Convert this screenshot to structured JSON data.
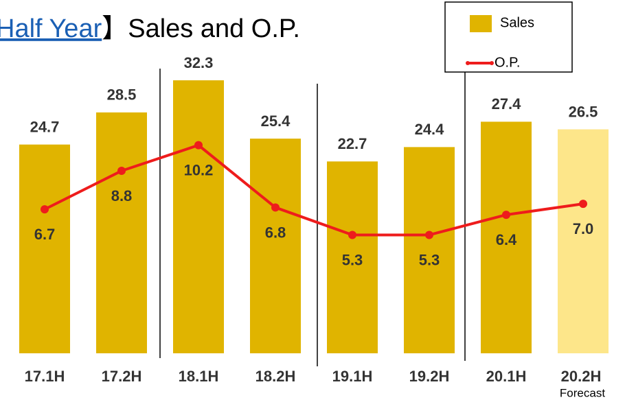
{
  "chart_data": {
    "type": "bar_line",
    "title_link": "Half Year",
    "title": "】Sales and O.P.",
    "categories": [
      "17.1H",
      "17.2H",
      "18.1H",
      "18.2H",
      "19.1H",
      "19.2H",
      "20.1H",
      "20.2H"
    ],
    "annotation": "Forecast",
    "series": [
      {
        "name": "Sales",
        "kind": "bar",
        "color": "#e0b400",
        "colors": [
          "#e0b400",
          "#e0b400",
          "#e0b400",
          "#e0b400",
          "#e0b400",
          "#e0b400",
          "#e0b400",
          "#fde68a"
        ],
        "values": [
          24.7,
          28.5,
          32.3,
          25.4,
          22.7,
          24.4,
          27.4,
          26.5
        ]
      },
      {
        "name": "O.P.",
        "kind": "line",
        "color": "#ee1c1c",
        "values": [
          6.7,
          8.8,
          10.2,
          6.8,
          5.3,
          5.3,
          6.4,
          7.0
        ],
        "value_labels": [
          "6.7",
          "8.8",
          "10.2",
          "6.8",
          "5.3",
          "5.3",
          "6.4",
          "7.0"
        ]
      }
    ],
    "legend": "top-right"
  }
}
